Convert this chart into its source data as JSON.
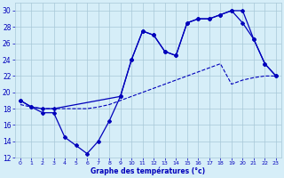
{
  "xlabel": "Graphe des températures (°c)",
  "background_color": "#d6eef8",
  "grid_color": "#a8c8d8",
  "line_color": "#0000bb",
  "xlim": [
    -0.5,
    23.5
  ],
  "ylim": [
    12,
    31
  ],
  "xticks": [
    0,
    1,
    2,
    3,
    4,
    5,
    6,
    7,
    8,
    9,
    10,
    11,
    12,
    13,
    14,
    15,
    16,
    17,
    18,
    19,
    20,
    21,
    22,
    23
  ],
  "yticks": [
    12,
    14,
    16,
    18,
    20,
    22,
    24,
    26,
    28,
    30
  ],
  "line1_x": [
    0,
    1,
    2,
    3,
    4,
    5,
    6,
    7,
    8,
    9,
    10,
    11,
    12,
    13,
    14,
    15,
    16,
    17,
    18,
    19,
    20,
    21,
    22,
    23
  ],
  "line1_y": [
    19.0,
    18.2,
    17.5,
    17.5,
    14.5,
    13.5,
    12.5,
    14.0,
    16.5,
    19.5,
    24.0,
    27.5,
    27.0,
    25.0,
    24.5,
    28.5,
    29.0,
    29.0,
    29.5,
    30.0,
    30.0,
    26.5,
    23.5,
    22.0
  ],
  "line2_x": [
    0,
    1,
    2,
    3,
    4,
    5,
    6,
    7,
    8,
    9,
    10,
    11,
    12,
    13,
    14,
    15,
    16,
    17,
    18,
    19,
    20,
    21,
    22,
    23
  ],
  "line2_y": [
    18.5,
    18.2,
    18.0,
    18.0,
    18.0,
    18.0,
    18.0,
    18.2,
    18.5,
    19.0,
    19.5,
    20.0,
    20.5,
    21.0,
    21.5,
    22.0,
    22.5,
    23.0,
    23.5,
    21.0,
    21.5,
    21.8,
    22.0,
    22.0
  ],
  "line3_x": [
    0,
    1,
    2,
    3,
    9,
    10,
    11,
    12,
    13,
    14,
    15,
    16,
    17,
    18,
    19,
    20,
    21,
    22,
    23
  ],
  "line3_y": [
    19.0,
    18.2,
    18.0,
    18.0,
    19.5,
    24.0,
    27.5,
    27.0,
    25.0,
    24.5,
    28.5,
    29.0,
    29.0,
    29.5,
    30.0,
    28.5,
    26.5,
    23.5,
    22.0
  ]
}
